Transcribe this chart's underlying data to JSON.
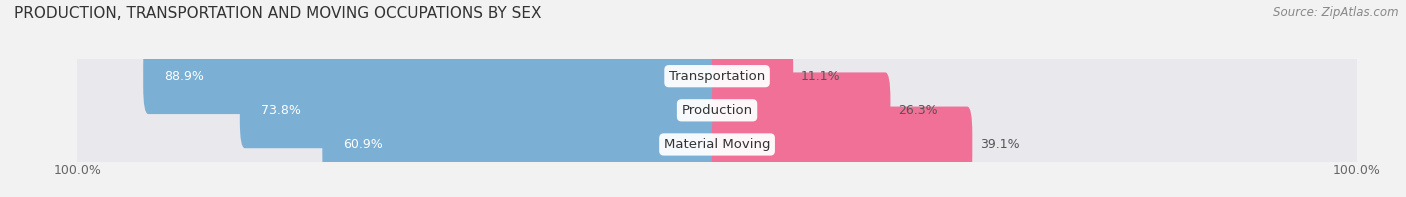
{
  "title": "PRODUCTION, TRANSPORTATION AND MOVING OCCUPATIONS BY SEX",
  "source": "Source: ZipAtlas.com",
  "categories": [
    "Transportation",
    "Production",
    "Material Moving"
  ],
  "male_values": [
    88.9,
    73.8,
    60.9
  ],
  "female_values": [
    11.1,
    26.3,
    39.1
  ],
  "male_color": "#7bafd4",
  "female_color": "#f07098",
  "male_label_color": "#ffffff",
  "female_label_color": "#555555",
  "background_color": "#f2f2f2",
  "row_bg_color": "#e8e8ed",
  "axis_label_left": "100.0%",
  "axis_label_right": "100.0%",
  "title_fontsize": 11,
  "source_fontsize": 8.5,
  "tick_fontsize": 9,
  "bar_label_fontsize": 9,
  "category_fontsize": 9.5,
  "legend_fontsize": 9
}
